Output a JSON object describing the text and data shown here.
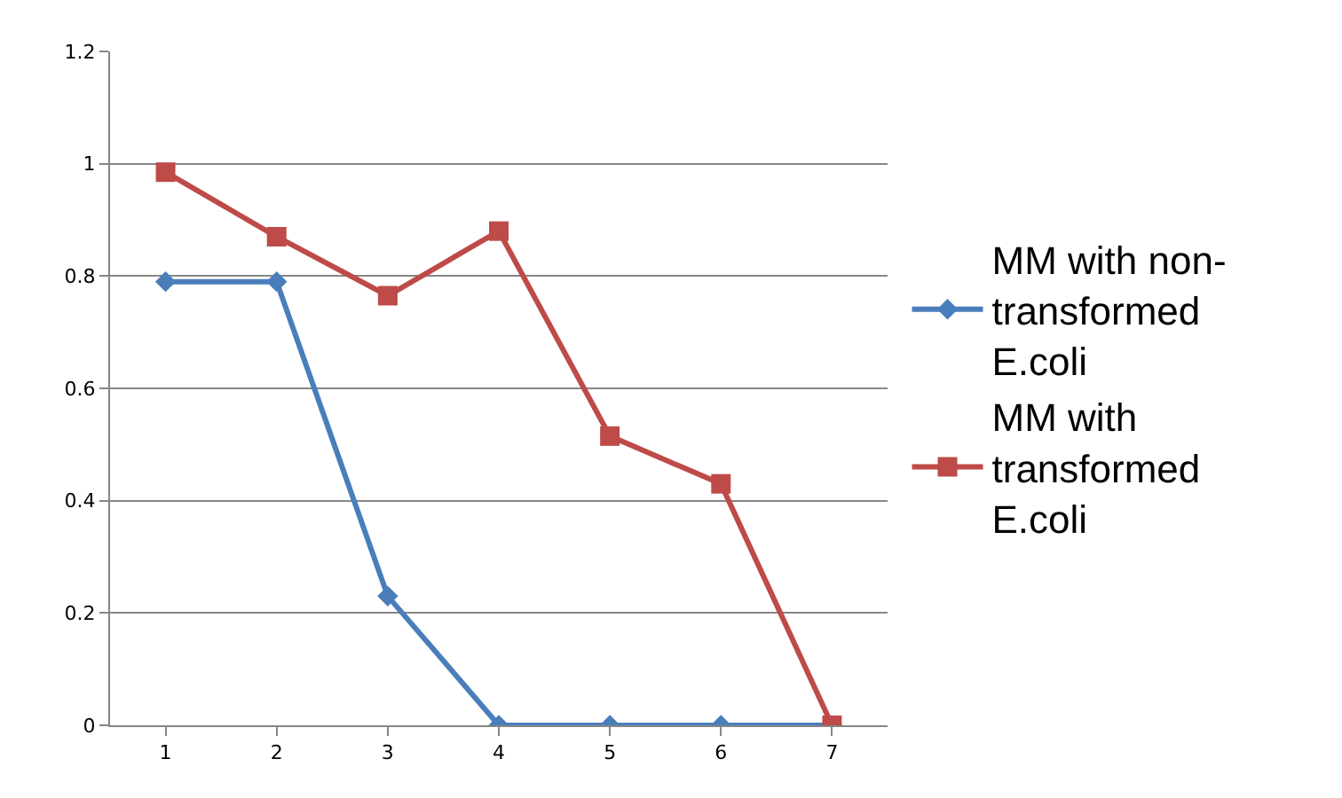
{
  "chart_data": {
    "type": "line",
    "categories": [
      "1",
      "2",
      "3",
      "4",
      "5",
      "6",
      "7"
    ],
    "series": [
      {
        "name": "MM with non-transformed E.coli",
        "color": "#4a7ebb",
        "marker": "diamond",
        "values": [
          0.79,
          0.79,
          0.23,
          0,
          0,
          0,
          0
        ]
      },
      {
        "name": "MM with transformed E.coli",
        "color": "#be4b48",
        "marker": "square",
        "values": [
          0.985,
          0.87,
          0.765,
          0.88,
          0.515,
          0.43,
          0
        ]
      }
    ],
    "ylim": [
      0,
      1.2
    ],
    "yticks": [
      0,
      0.2,
      0.4,
      0.6,
      0.8,
      1,
      1.2
    ],
    "grid": "y",
    "legend": "right",
    "line_style": "solid"
  }
}
